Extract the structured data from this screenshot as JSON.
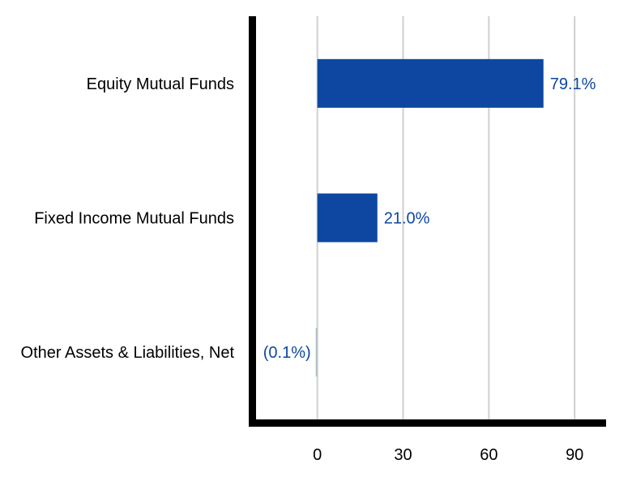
{
  "chart_data": {
    "type": "bar",
    "orientation": "horizontal",
    "categories": [
      "Equity Mutual Funds",
      "Fixed Income Mutual Funds",
      "Other Assets & Liabilities, Net"
    ],
    "values": [
      79.1,
      21.0,
      -0.1
    ],
    "data_labels": [
      "79.1%",
      "21.0%",
      "(0.1%)"
    ],
    "x_ticks": [
      0,
      30,
      60,
      90
    ],
    "x_tick_labels": [
      "0",
      "30",
      "60",
      "90"
    ],
    "xlim": [
      -24,
      101
    ],
    "grid": true,
    "bar_color": "#0d47a1",
    "negative_bar_color": "#b0bec5",
    "label_color": "#0d47a1",
    "grid_color": "#d0d0d0",
    "axis_color": "#000000"
  }
}
